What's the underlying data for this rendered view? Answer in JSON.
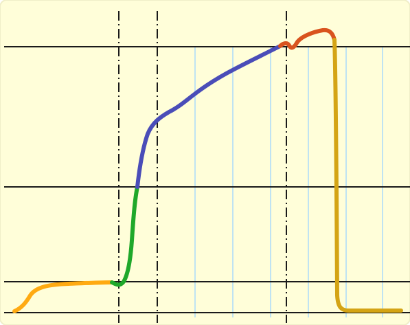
{
  "diagram": {
    "type": "stress-strain-curve",
    "colors": {
      "background": "#FFFED9",
      "background_border": "#F0EEC8",
      "horizontal_line": "#1A1A1A",
      "dashdot_line": "#1A1A1A",
      "light_vertical_line": "#BFE3F2",
      "region_initial": "#FFAA12",
      "region_steep": "#1FA82A",
      "region_plastic": "#4A4DB8",
      "region_peak": "#D9531E",
      "region_drop": "#D4A415"
    },
    "regions": [
      {
        "id": "initial"
      },
      {
        "id": "steep"
      },
      {
        "id": "plastic"
      },
      {
        "id": "peak"
      },
      {
        "id": "drop"
      }
    ]
  }
}
